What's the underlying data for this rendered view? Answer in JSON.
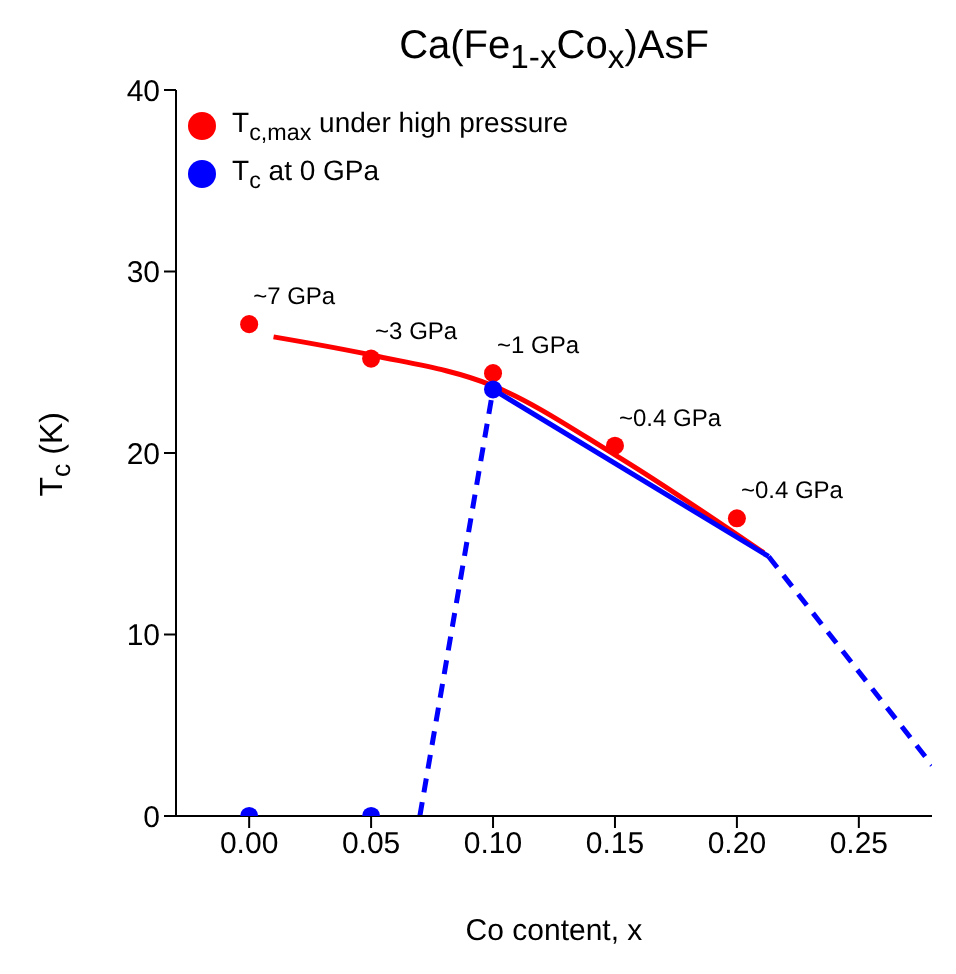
{
  "chart_data": {
    "type": "scatter",
    "title": "Ca(Fe$_{1-x}$Co$_{x}$)AsF",
    "xlabel": "Co content, x",
    "ylabel": "T$_{c}$ (K)",
    "xlim": [
      -0.03,
      0.28
    ],
    "xticks": [
      {
        "value": 0,
        "label": "0.00"
      },
      0.05,
      {
        "value": 0.1,
        "label": "0.10"
      },
      0.15,
      {
        "value": 0.2,
        "label": "0.20"
      },
      0.25
    ],
    "ylim": [
      0,
      40
    ],
    "yticks": [
      0,
      10,
      20,
      30,
      40
    ],
    "grid": false,
    "legend": "top left",
    "annotations": [
      {
        "text": "~7 GPa",
        "x": 0,
        "y": 27.1
      },
      {
        "text": "~3 GPa",
        "x": 0.05,
        "y": 25.2
      },
      {
        "text": "~1 GPa",
        "x": 0.1,
        "y": 24.4
      },
      {
        "text": "~0.4 GPa",
        "x": 0.15,
        "y": 20.4
      },
      {
        "text": "~0.4 GPa",
        "x": 0.2,
        "y": 16.4
      }
    ],
    "series": [
      {
        "name": "T$_{c,max}$ under high pressure",
        "marker": "circle",
        "color": "#ff0000",
        "x": [
          0,
          0.05,
          0.1,
          0.15,
          0.2
        ],
        "values": [
          27.1,
          25.2,
          24.4,
          20.4,
          16.4
        ]
      },
      {
        "name": "T$_{c}$ at 0 GPa",
        "marker": "circle",
        "color": "#0000ff",
        "x": [
          0,
          0.05,
          0.1
        ],
        "values": [
          0,
          0,
          23.5
        ]
      },
      {
        "type": "line",
        "color": "#ff0000",
        "line_style": "solid",
        "x": [
          0.01,
          0.05,
          0.1,
          0.15,
          0.211
        ],
        "values": [
          26.4,
          25.4,
          23.7,
          19.9,
          14.5
        ]
      },
      {
        "type": "line",
        "color": "#0000ff",
        "line_style": "solid",
        "x": [
          0.1,
          0.213
        ],
        "values": [
          23.5,
          14.3
        ]
      },
      {
        "type": "line",
        "color": "#0000ff",
        "line_style": "dashed",
        "x": [
          0.07,
          0.1
        ],
        "values": [
          0,
          23.5
        ]
      },
      {
        "type": "line",
        "color": "#0000ff",
        "line_style": "dashed",
        "x": [
          0.213,
          0.28
        ],
        "values": [
          14.3,
          2.8
        ]
      }
    ]
  }
}
